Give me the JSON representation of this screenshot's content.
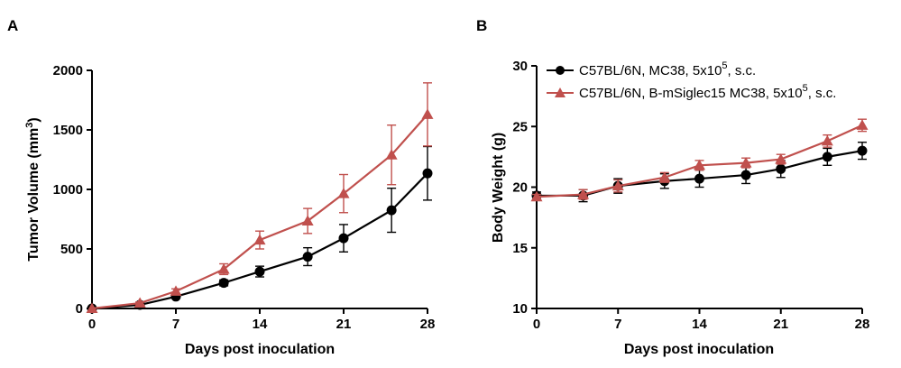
{
  "panels": [
    {
      "letter": "A",
      "ylabel_main": "Tumor Volume (mm",
      "ylabel_sup": "3",
      "ylabel_end": ")",
      "xlabel": "Days post inoculation"
    },
    {
      "letter": "B",
      "ylabel_main": "Body Weight (g)",
      "xlabel": "Days post inoculation"
    }
  ],
  "legend": [
    {
      "main": "C57BL/6N, MC38, 5x10",
      "sup": "5",
      "end": ", s.c."
    },
    {
      "main": "C57BL/6N, B-mSiglec15 MC38, 5x10",
      "sup": "5",
      "end": ", s.c."
    }
  ],
  "colors": {
    "control": "#000000",
    "treated": "#c0504d"
  },
  "chart_data": [
    {
      "type": "line",
      "x": [
        0,
        4,
        7,
        11,
        14,
        18,
        21,
        25,
        28
      ],
      "xlim": [
        0,
        28
      ],
      "xticks": [
        0,
        7,
        14,
        21,
        28
      ],
      "ylim": [
        0,
        2000
      ],
      "yticks": [
        0,
        500,
        1000,
        1500,
        2000
      ],
      "ylabel": "Tumor Volume (mm3)",
      "xlabel": "Days post inoculation",
      "series": [
        {
          "name": "C57BL/6N, MC38, 5x10^5, s.c.",
          "marker": "circle",
          "values": [
            0,
            30,
            100,
            215,
            310,
            435,
            590,
            825,
            1135
          ],
          "err": [
            0,
            8,
            15,
            25,
            45,
            75,
            115,
            185,
            225
          ]
        },
        {
          "name": "C57BL/6N, B-mSiglec15 MC38, 5x10^5, s.c.",
          "marker": "triangle",
          "values": [
            0,
            45,
            145,
            330,
            575,
            735,
            965,
            1290,
            1630
          ],
          "err": [
            0,
            10,
            20,
            45,
            75,
            105,
            160,
            250,
            265
          ]
        }
      ]
    },
    {
      "type": "line",
      "x": [
        0,
        4,
        7,
        11,
        14,
        18,
        21,
        25,
        28
      ],
      "xlim": [
        0,
        28
      ],
      "xticks": [
        0,
        7,
        14,
        21,
        28
      ],
      "ylim": [
        10,
        30
      ],
      "yticks": [
        10,
        15,
        20,
        25,
        30
      ],
      "ylabel": "Body Weight (g)",
      "xlabel": "Days post inoculation",
      "series": [
        {
          "name": "C57BL/6N, MC38, 5x10^5, s.c.",
          "marker": "circle",
          "values": [
            19.3,
            19.3,
            20.1,
            20.5,
            20.7,
            21.0,
            21.5,
            22.5,
            23.0
          ],
          "err": [
            0.3,
            0.5,
            0.6,
            0.6,
            0.7,
            0.7,
            0.7,
            0.7,
            0.7
          ]
        },
        {
          "name": "C57BL/6N, B-mSiglec15 MC38, 5x10^5, s.c.",
          "marker": "triangle",
          "values": [
            19.2,
            19.4,
            20.1,
            20.8,
            21.8,
            22.0,
            22.3,
            23.8,
            25.1
          ],
          "err": [
            0.2,
            0.4,
            0.5,
            0.4,
            0.4,
            0.4,
            0.4,
            0.5,
            0.5
          ]
        }
      ]
    }
  ]
}
